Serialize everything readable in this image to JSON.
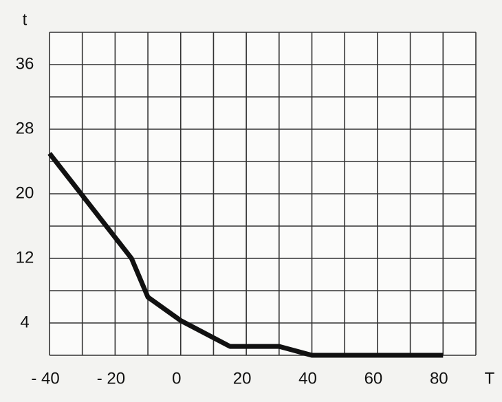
{
  "chart_data": {
    "type": "line",
    "x_label": "T",
    "y_label": "t",
    "x": [
      -40,
      -15,
      -10,
      0,
      15,
      30,
      40,
      80
    ],
    "series": [
      {
        "color": "#111111",
        "values": [
          25,
          12,
          7.2,
          4.3,
          1.1,
          1.1,
          0,
          0
        ]
      }
    ],
    "xlim": [
      -40,
      90
    ],
    "ylim": [
      0,
      40
    ],
    "xticks": [
      {
        "value": -40,
        "label": "- 40"
      },
      {
        "value": -20,
        "label": "- 20"
      },
      0,
      20,
      40,
      60,
      80
    ],
    "xticks_minor": [
      -30,
      -10,
      10,
      30,
      50,
      70,
      90
    ],
    "yticks": [
      4,
      12,
      20,
      28,
      36
    ],
    "yticks_minor": [
      0,
      8,
      16,
      24,
      32,
      40
    ],
    "grid": true
  }
}
